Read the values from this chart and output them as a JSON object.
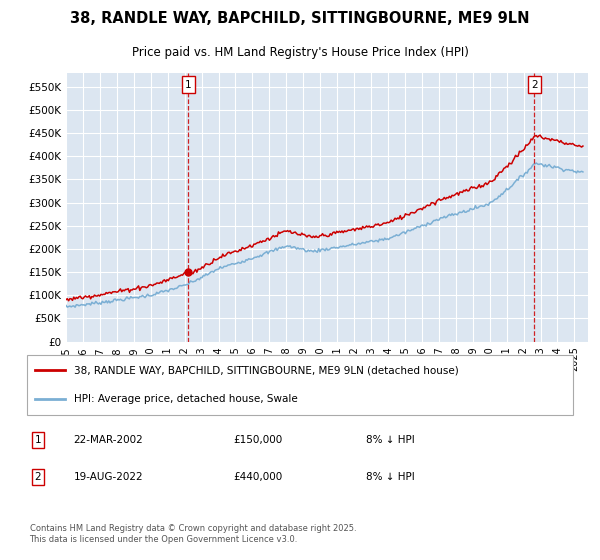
{
  "title": "38, RANDLE WAY, BAPCHILD, SITTINGBOURNE, ME9 9LN",
  "subtitle": "Price paid vs. HM Land Registry's House Price Index (HPI)",
  "background_color": "#dce6f1",
  "plot_bg_color": "#dce6f1",
  "grid_color": "#ffffff",
  "red_line_color": "#cc0000",
  "blue_line_color": "#7bafd4",
  "transaction1_date": "22-MAR-2002",
  "transaction1_price": 150000,
  "transaction1_note": "8% ↓ HPI",
  "transaction2_date": "19-AUG-2022",
  "transaction2_price": 440000,
  "transaction2_note": "8% ↓ HPI",
  "legend_label1": "38, RANDLE WAY, BAPCHILD, SITTINGBOURNE, ME9 9LN (detached house)",
  "legend_label2": "HPI: Average price, detached house, Swale",
  "footer": "Contains HM Land Registry data © Crown copyright and database right 2025.\nThis data is licensed under the Open Government Licence v3.0.",
  "ylim": [
    0,
    580000
  ],
  "yticks": [
    0,
    50000,
    100000,
    150000,
    200000,
    250000,
    300000,
    350000,
    400000,
    450000,
    500000,
    550000
  ],
  "x_start_year": 1995,
  "x_end_year": 2025
}
